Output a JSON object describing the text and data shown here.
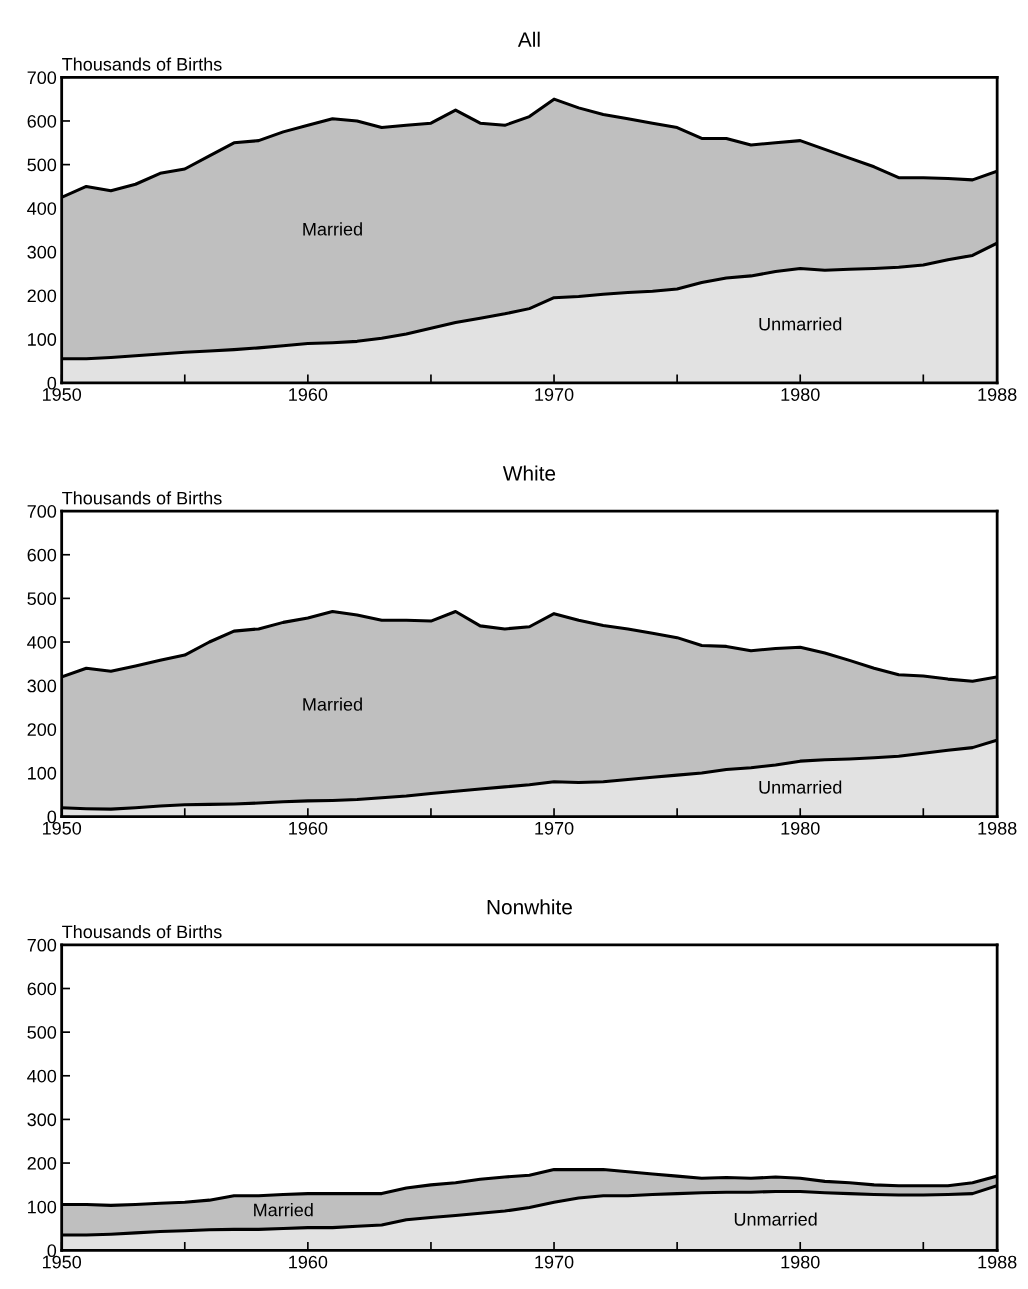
{
  "chart_data": [
    {
      "type": "area",
      "stacked": true,
      "title": "All",
      "ylabel": "Thousands of Births",
      "x": [
        1950,
        1951,
        1952,
        1953,
        1954,
        1955,
        1956,
        1957,
        1958,
        1959,
        1960,
        1961,
        1962,
        1963,
        1964,
        1965,
        1966,
        1967,
        1968,
        1969,
        1970,
        1971,
        1972,
        1973,
        1974,
        1975,
        1976,
        1977,
        1978,
        1979,
        1980,
        1981,
        1982,
        1983,
        1984,
        1985,
        1986,
        1987,
        1988
      ],
      "series": [
        {
          "name": "Unmarried",
          "color": "#e2e2e2",
          "values": [
            55,
            55,
            58,
            62,
            66,
            70,
            73,
            76,
            80,
            85,
            90,
            92,
            95,
            102,
            112,
            125,
            138,
            148,
            158,
            170,
            195,
            198,
            203,
            207,
            210,
            215,
            230,
            240,
            245,
            255,
            262,
            258,
            260,
            262,
            265,
            270,
            282,
            292,
            320
          ]
        },
        {
          "name": "Married",
          "color": "#bfbfbf",
          "values": [
            370,
            395,
            382,
            393,
            414,
            420,
            447,
            474,
            475,
            490,
            500,
            513,
            505,
            483,
            478,
            470,
            487,
            447,
            432,
            440,
            455,
            432,
            412,
            398,
            385,
            370,
            330,
            320,
            300,
            295,
            293,
            277,
            255,
            233,
            205,
            200,
            186,
            173,
            165
          ]
        }
      ],
      "xlim": [
        1950,
        1988
      ],
      "xticks": [
        1950,
        {
          "value": 1955,
          "label": null
        },
        1960,
        {
          "value": 1965,
          "label": null
        },
        1970,
        {
          "value": 1975,
          "label": null
        },
        1980,
        {
          "value": 1985,
          "label": null
        },
        1988
      ],
      "ylim": [
        0,
        700
      ],
      "yticks": [
        0,
        100,
        200,
        300,
        400,
        500,
        600,
        700
      ]
    },
    {
      "type": "area",
      "stacked": true,
      "title": "White",
      "ylabel": "Thousands of Births",
      "x": [
        1950,
        1951,
        1952,
        1953,
        1954,
        1955,
        1956,
        1957,
        1958,
        1959,
        1960,
        1961,
        1962,
        1963,
        1964,
        1965,
        1966,
        1967,
        1968,
        1969,
        1970,
        1971,
        1972,
        1973,
        1974,
        1975,
        1976,
        1977,
        1978,
        1979,
        1980,
        1981,
        1982,
        1983,
        1984,
        1985,
        1986,
        1987,
        1988
      ],
      "series": [
        {
          "name": "Unmarried",
          "color": "#e2e2e2",
          "values": [
            20,
            18,
            17,
            20,
            24,
            27,
            28,
            29,
            31,
            34,
            36,
            37,
            39,
            43,
            47,
            53,
            58,
            63,
            68,
            73,
            80,
            78,
            80,
            85,
            90,
            95,
            100,
            108,
            112,
            118,
            127,
            130,
            132,
            135,
            138,
            145,
            152,
            158,
            175
          ]
        },
        {
          "name": "Married",
          "color": "#bfbfbf",
          "values": [
            300,
            322,
            316,
            325,
            334,
            343,
            372,
            396,
            399,
            411,
            419,
            433,
            423,
            407,
            403,
            395,
            412,
            374,
            362,
            362,
            385,
            372,
            358,
            345,
            330,
            315,
            292,
            282,
            268,
            267,
            261,
            245,
            226,
            205,
            187,
            177,
            163,
            152,
            145
          ]
        }
      ],
      "xlim": [
        1950,
        1988
      ],
      "xticks": [
        1950,
        {
          "value": 1955,
          "label": null
        },
        1960,
        {
          "value": 1965,
          "label": null
        },
        1970,
        {
          "value": 1975,
          "label": null
        },
        1980,
        {
          "value": 1985,
          "label": null
        },
        1988
      ],
      "ylim": [
        0,
        700
      ],
      "yticks": [
        0,
        100,
        200,
        300,
        400,
        500,
        600,
        700
      ]
    },
    {
      "type": "area",
      "stacked": true,
      "title": "Nonwhite",
      "ylabel": "Thousands of Births",
      "x": [
        1950,
        1951,
        1952,
        1953,
        1954,
        1955,
        1956,
        1957,
        1958,
        1959,
        1960,
        1961,
        1962,
        1963,
        1964,
        1965,
        1966,
        1967,
        1968,
        1969,
        1970,
        1971,
        1972,
        1973,
        1974,
        1975,
        1976,
        1977,
        1978,
        1979,
        1980,
        1981,
        1982,
        1983,
        1984,
        1985,
        1986,
        1987,
        1988
      ],
      "series": [
        {
          "name": "Unmarried",
          "color": "#e2e2e2",
          "values": [
            35,
            35,
            37,
            40,
            43,
            45,
            47,
            48,
            48,
            50,
            52,
            52,
            55,
            58,
            70,
            75,
            80,
            85,
            90,
            98,
            110,
            120,
            125,
            125,
            128,
            130,
            132,
            133,
            133,
            135,
            135,
            132,
            130,
            128,
            127,
            127,
            128,
            130,
            148
          ]
        },
        {
          "name": "Married",
          "color": "#bfbfbf",
          "values": [
            70,
            70,
            66,
            65,
            65,
            65,
            68,
            77,
            77,
            78,
            78,
            78,
            75,
            72,
            73,
            75,
            75,
            78,
            78,
            74,
            75,
            65,
            60,
            55,
            47,
            40,
            33,
            34,
            32,
            33,
            30,
            26,
            25,
            22,
            21,
            21,
            20,
            25,
            22
          ]
        }
      ],
      "xlim": [
        1950,
        1988
      ],
      "xticks": [
        1950,
        {
          "value": 1955,
          "label": null
        },
        1960,
        {
          "value": 1965,
          "label": null
        },
        1970,
        {
          "value": 1975,
          "label": null
        },
        1980,
        {
          "value": 1985,
          "label": null
        },
        1988
      ],
      "ylim": [
        0,
        700
      ],
      "yticks": [
        0,
        100,
        200,
        300,
        400,
        500,
        600,
        700
      ]
    }
  ]
}
